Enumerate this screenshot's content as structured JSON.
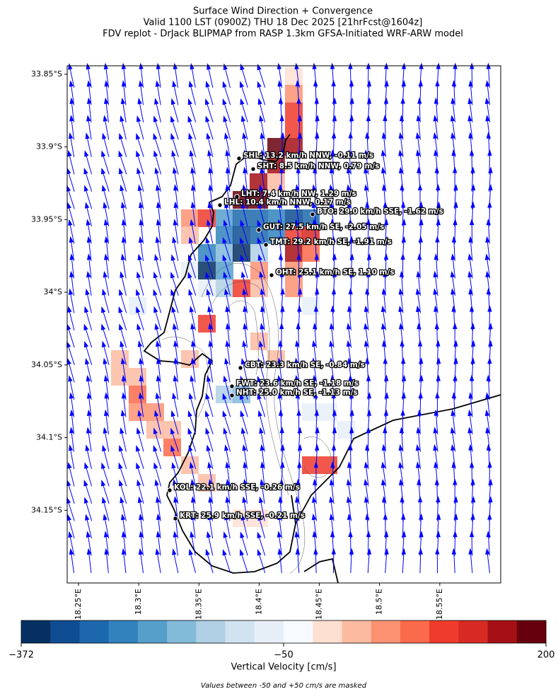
{
  "header": {
    "title_lines": [
      "Surface Wind Direction + Convergence",
      "Valid 1100 LST (0900Z) THU 18 Dec 2025 [21hrFcst@1604z]",
      "FDV replot - DrJack BLIPMAP from RASP 1.3km GFSA-Initiated WRF-ARW model"
    ]
  },
  "map": {
    "ylim": [
      -34.2,
      -33.8442
    ],
    "yticks": [
      {
        "value": -33.85,
        "label": "33.85°S"
      },
      {
        "value": -33.9,
        "label": "33.9°S"
      },
      {
        "value": -33.95,
        "label": "33.95°S"
      },
      {
        "value": -34.0,
        "label": "34°S"
      },
      {
        "value": -34.05,
        "label": "34.05°S"
      },
      {
        "value": -34.1,
        "label": "34.1°S"
      },
      {
        "value": -34.15,
        "label": "34.15°S"
      }
    ],
    "xlim": [
      18.2406,
      18.6006
    ],
    "xticks": [
      {
        "value": 18.25,
        "label": "18.25°E"
      },
      {
        "value": 18.3,
        "label": "18.3°E"
      },
      {
        "value": 18.35,
        "label": "18.35°E"
      },
      {
        "value": 18.4,
        "label": "18.4°E"
      },
      {
        "value": 18.45,
        "label": "18.45°E"
      },
      {
        "value": 18.5,
        "label": "18.5°E"
      },
      {
        "value": 18.55,
        "label": "18.55°E"
      }
    ],
    "stations": [
      "SHL: 13.2 km/h NNW, -0.11 m/s",
      "SHT: 8.5 km/h NNW, 0.79 m/s",
      "LHT: 7.4 km/h NW, 1.29 m/s",
      "LHL: 10.4 km/h NNW, 0.17 m/s",
      "BTO: 29.0 km/h SSE, -1.62 m/s",
      "GUT: 27.5 km/h SE, -2.05 m/s",
      "TMT: 29.2 km/h SE, -1.91 m/s",
      "OHT: 25.1 km/h SE, 1.10 m/s",
      "CBT: 23.3 km/h SE, -0.84 m/s",
      "FWT: 23.6 km/h SE, -1.18 m/s",
      "NHT: 25.0 km/h SE, -1.13 m/s",
      "KOL: 22.1 km/h SSE, -0.26 m/s",
      "KRT: 25.9 km/h SSE, -0.21 m/s"
    ],
    "arrow_color": "#0000ff"
  },
  "colorbar": {
    "label": "Vertical Velocity [cm/s]",
    "ticks": [
      {
        "value": -372,
        "label": "−372"
      },
      {
        "value": -50,
        "label": "−50"
      },
      200
    ],
    "colors": [
      "#053061",
      "#0e4d92",
      "#1d68ac",
      "#3182bd",
      "#569fcb",
      "#82bada",
      "#b0d0e5",
      "#d1e3f0",
      "#e6eff8",
      "#f7fbff",
      "#fee0d2",
      "#fcbba1",
      "#fc9272",
      "#fb6a4a",
      "#ef3b2c",
      "#d62a23",
      "#a50f15",
      "#67000d"
    ],
    "note": "Values between -50 and +50 cm/s are masked"
  }
}
